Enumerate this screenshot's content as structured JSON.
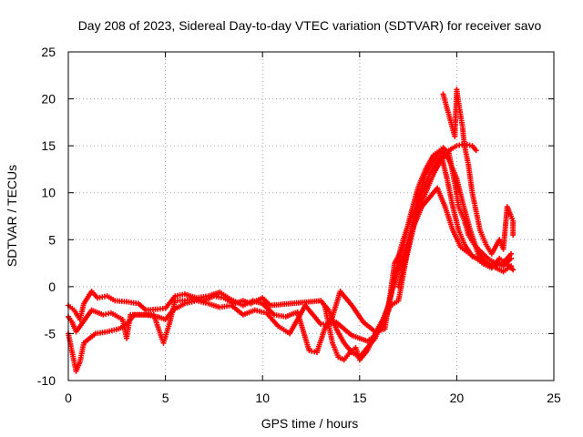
{
  "chart_data": {
    "type": "scatter",
    "title": "Day 208 of 2023, Sidereal Day-to-day VTEC variation (SDTVAR) for receiver savo",
    "xlabel": "GPS time / hours",
    "ylabel": "SDTVAR / TECUs",
    "xlim": [
      0,
      25
    ],
    "ylim": [
      -10,
      25
    ],
    "xticks": [
      0,
      5,
      10,
      15,
      20,
      25
    ],
    "yticks": [
      -10,
      -5,
      0,
      5,
      10,
      15,
      20,
      25
    ],
    "grid": true,
    "marker": "+",
    "series": [
      {
        "name": "track-1",
        "color": "#ff0000",
        "points": [
          [
            0.0,
            -2.0
          ],
          [
            0.3,
            -2.5
          ],
          [
            0.6,
            -3.5
          ],
          [
            0.8,
            -1.8
          ],
          [
            1.2,
            -0.5
          ],
          [
            1.5,
            -1.2
          ],
          [
            2.0,
            -1.0
          ],
          [
            2.4,
            -1.5
          ],
          [
            3.0,
            -1.6
          ],
          [
            3.6,
            -1.8
          ],
          [
            4.0,
            -2.5
          ],
          [
            4.6,
            -2.4
          ],
          [
            5.0,
            -2.3
          ],
          [
            5.5,
            -1.0
          ],
          [
            6.0,
            -0.8
          ],
          [
            6.6,
            -1.2
          ],
          [
            7.2,
            -1.0
          ],
          [
            7.8,
            -0.6
          ],
          [
            8.4,
            -1.4
          ],
          [
            9.0,
            -2.0
          ],
          [
            9.5,
            -1.5
          ],
          [
            10.0,
            -1.8
          ],
          [
            10.6,
            -3.0
          ],
          [
            11.2,
            -3.2
          ],
          [
            11.8,
            -2.7
          ],
          [
            12.4,
            -6.8
          ],
          [
            12.8,
            -7.0
          ],
          [
            13.2,
            -4.5
          ],
          [
            13.6,
            -3.2
          ],
          [
            14.0,
            -0.5
          ],
          [
            14.6,
            -2.0
          ],
          [
            15.2,
            -3.8
          ],
          [
            15.8,
            -4.8
          ],
          [
            16.3,
            -4.5
          ],
          [
            16.6,
            -0.5
          ],
          [
            16.8,
            2.5
          ],
          [
            17.2,
            4.0
          ],
          [
            17.6,
            7.5
          ],
          [
            18.0,
            10.5
          ],
          [
            18.4,
            12.5
          ],
          [
            18.8,
            14.0
          ],
          [
            19.2,
            14.6
          ],
          [
            19.6,
            13.5
          ],
          [
            20.0,
            11.5
          ],
          [
            20.3,
            9.0
          ],
          [
            20.7,
            6.0
          ],
          [
            21.1,
            3.5
          ],
          [
            21.5,
            2.5
          ],
          [
            22.0,
            2.2
          ],
          [
            22.5,
            2.8
          ],
          [
            22.8,
            3.5
          ]
        ]
      },
      {
        "name": "track-2",
        "color": "#ff0000",
        "points": [
          [
            0.0,
            -5.0
          ],
          [
            0.2,
            -7.0
          ],
          [
            0.4,
            -9.0
          ],
          [
            0.6,
            -8.0
          ],
          [
            0.8,
            -6.0
          ],
          [
            1.4,
            -5.0
          ],
          [
            2.0,
            -4.8
          ],
          [
            2.6,
            -4.5
          ],
          [
            3.0,
            -4.0
          ],
          [
            3.4,
            -3.0
          ],
          [
            4.0,
            -3.0
          ],
          [
            4.6,
            -3.2
          ],
          [
            5.0,
            -3.5
          ],
          [
            5.4,
            -2.5
          ],
          [
            6.0,
            -1.8
          ],
          [
            6.6,
            -1.5
          ],
          [
            7.2,
            -1.8
          ],
          [
            7.8,
            -2.2
          ],
          [
            8.4,
            -2.0
          ],
          [
            9.0,
            -3.0
          ],
          [
            9.6,
            -2.5
          ],
          [
            10.2,
            -2.8
          ],
          [
            10.8,
            -4.2
          ],
          [
            11.4,
            -5.0
          ],
          [
            11.8,
            -3.5
          ],
          [
            12.2,
            -2.0
          ],
          [
            12.6,
            -3.0
          ],
          [
            13.0,
            -4.0
          ],
          [
            13.4,
            -4.0
          ],
          [
            13.8,
            -3.8
          ],
          [
            14.2,
            -4.5
          ],
          [
            14.6,
            -5.2
          ],
          [
            15.0,
            -5.5
          ],
          [
            15.4,
            -5.8
          ],
          [
            15.8,
            -5.2
          ],
          [
            16.2,
            -4.0
          ],
          [
            16.6,
            -2.0
          ],
          [
            17.0,
            -1.5
          ],
          [
            17.4,
            3.0
          ],
          [
            17.8,
            6.5
          ],
          [
            18.2,
            8.5
          ],
          [
            18.6,
            9.5
          ],
          [
            19.0,
            10.5
          ],
          [
            19.4,
            8.5
          ],
          [
            19.8,
            6.0
          ],
          [
            20.2,
            4.2
          ],
          [
            20.6,
            3.6
          ],
          [
            21.0,
            3.0
          ],
          [
            21.4,
            2.4
          ],
          [
            21.8,
            2.0
          ],
          [
            22.2,
            3.0
          ],
          [
            22.6,
            2.4
          ],
          [
            22.9,
            1.8
          ]
        ]
      },
      {
        "name": "track-3",
        "color": "#ff0000",
        "points": [
          [
            0.0,
            -3.2
          ],
          [
            0.2,
            -3.8
          ],
          [
            0.4,
            -4.8
          ],
          [
            1.2,
            -2.5
          ],
          [
            1.8,
            -3.0
          ],
          [
            2.2,
            -2.8
          ],
          [
            2.8,
            -3.5
          ],
          [
            3.0,
            -5.5
          ],
          [
            3.2,
            -3.0
          ],
          [
            3.8,
            -3.0
          ],
          [
            4.4,
            -3.0
          ],
          [
            4.9,
            -6.0
          ],
          [
            5.2,
            -4.0
          ],
          [
            5.5,
            -1.5
          ],
          [
            6.0,
            -1.5
          ],
          [
            6.5,
            -1.3
          ],
          [
            7.0,
            -1.5
          ],
          [
            7.5,
            -1.0
          ],
          [
            8.0,
            -1.2
          ],
          [
            8.5,
            -1.8
          ],
          [
            9.0,
            -1.5
          ],
          [
            9.4,
            -1.8
          ],
          [
            10.0,
            -1.2
          ],
          [
            10.4,
            -2.0
          ],
          [
            13.0,
            -1.5
          ],
          [
            13.4,
            -2.5
          ],
          [
            13.8,
            -4.5
          ],
          [
            14.2,
            -6.0
          ],
          [
            14.6,
            -7.0
          ],
          [
            15.0,
            -7.5
          ],
          [
            15.4,
            -6.5
          ],
          [
            15.8,
            -5.5
          ],
          [
            16.0,
            -4.5
          ],
          [
            16.4,
            -2.5
          ],
          [
            16.8,
            0.5
          ],
          [
            17.2,
            3.0
          ],
          [
            17.6,
            5.5
          ],
          [
            18.0,
            8.0
          ],
          [
            18.4,
            10.0
          ],
          [
            18.8,
            12.0
          ],
          [
            19.2,
            13.5
          ],
          [
            19.6,
            14.5
          ],
          [
            20.0,
            15.0
          ],
          [
            20.4,
            15.2
          ],
          [
            20.8,
            15.0
          ],
          [
            21.0,
            14.5
          ]
        ]
      },
      {
        "name": "track-4",
        "color": "#ff0000",
        "points": [
          [
            13.2,
            -2.0
          ],
          [
            13.4,
            -4.0
          ],
          [
            13.6,
            -6.0
          ],
          [
            13.9,
            -7.5
          ],
          [
            14.2,
            -7.8
          ],
          [
            14.5,
            -7.0
          ],
          [
            14.8,
            -6.5
          ],
          [
            15.0,
            -7.8
          ],
          [
            15.4,
            -6.8
          ],
          [
            15.8,
            -5.0
          ],
          [
            16.2,
            -3.5
          ],
          [
            16.5,
            -2.0
          ],
          [
            16.8,
            1.0
          ],
          [
            17.1,
            4.0
          ],
          [
            17.4,
            6.0
          ],
          [
            17.7,
            7.5
          ],
          [
            18.0,
            9.0
          ],
          [
            18.3,
            10.5
          ],
          [
            18.6,
            12.0
          ],
          [
            18.9,
            13.0
          ],
          [
            19.2,
            14.0
          ],
          [
            19.5,
            11.5
          ],
          [
            19.8,
            8.5
          ],
          [
            20.1,
            6.0
          ],
          [
            20.4,
            4.5
          ],
          [
            20.8,
            3.2
          ],
          [
            21.2,
            3.0
          ],
          [
            21.6,
            2.6
          ],
          [
            22.0,
            2.0
          ],
          [
            22.4,
            1.6
          ],
          [
            22.8,
            2.2
          ]
        ]
      },
      {
        "name": "track-5",
        "color": "#ff0000",
        "points": [
          [
            17.0,
            0.0
          ],
          [
            17.3,
            2.5
          ],
          [
            17.6,
            5.0
          ],
          [
            17.9,
            7.5
          ],
          [
            18.1,
            10.0
          ],
          [
            18.4,
            12.0
          ],
          [
            18.7,
            13.0
          ],
          [
            19.0,
            14.0
          ],
          [
            19.3,
            14.8
          ],
          [
            19.6,
            14.2
          ],
          [
            19.9,
            11.0
          ],
          [
            20.1,
            8.5
          ],
          [
            20.4,
            7.0
          ],
          [
            20.6,
            5.5
          ],
          [
            20.9,
            4.5
          ],
          [
            21.2,
            3.8
          ],
          [
            21.6,
            3.0
          ],
          [
            22.0,
            2.5
          ],
          [
            22.4,
            2.2
          ],
          [
            22.8,
            3.0
          ]
        ]
      },
      {
        "name": "track-6",
        "color": "#ff0000",
        "points": [
          [
            19.3,
            20.5
          ],
          [
            19.5,
            19.0
          ],
          [
            19.7,
            17.5
          ],
          [
            19.9,
            16.0
          ],
          [
            20.0,
            21.0
          ],
          [
            20.1,
            19.5
          ],
          [
            20.3,
            17.0
          ],
          [
            20.4,
            15.0
          ],
          [
            20.6,
            13.0
          ],
          [
            20.8,
            10.0
          ],
          [
            21.0,
            8.0
          ],
          [
            21.2,
            6.0
          ],
          [
            21.5,
            4.5
          ],
          [
            21.8,
            3.5
          ],
          [
            22.2,
            5.0
          ],
          [
            22.4,
            4.0
          ],
          [
            22.6,
            8.5
          ],
          [
            22.8,
            7.5
          ],
          [
            22.9,
            7.0
          ],
          [
            22.9,
            5.5
          ]
        ]
      }
    ]
  }
}
